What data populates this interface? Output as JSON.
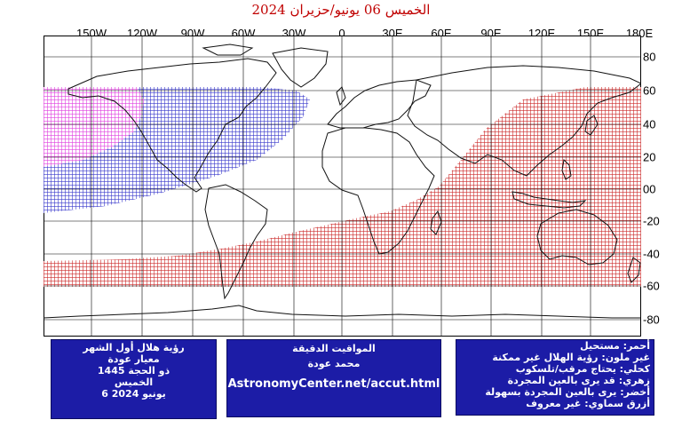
{
  "title": "الخميس 06 يونيو/حزيران 2024",
  "lon_labels": [
    "150W",
    "120W",
    "90W",
    "60W",
    "30W",
    "0",
    "30E",
    "60E",
    "90E",
    "120E",
    "150E",
    "180E"
  ],
  "lat_labels": [
    "80",
    "60",
    "40",
    "20",
    "00",
    "-20",
    "-40",
    "-60",
    "-80"
  ],
  "colors": {
    "red_zone": "#cc2a2a",
    "blue_zone": "#3a3acc",
    "magenta_zone": "#e040e0",
    "coast": "#111111",
    "box_bg": "#1c1ca6"
  },
  "legend_left": {
    "line1": "رؤية هلال أول الشهر",
    "line2": "معيار عودة",
    "line3": "ذو الحجة 1445",
    "line4": "الخميس",
    "line5": "6 يونيو 2024"
  },
  "legend_mid": {
    "line1": "المواقيت الدقيقة",
    "line2": "محمد عودة",
    "url": "AstronomyCenter.net/accut.html"
  },
  "legend_right": {
    "line1": "أحمر: مستحيل",
    "line2": "غير ملون: رؤية الهلال غير ممكنة",
    "line3": "كحلي: يحتاج مرقب/تلسكوب",
    "line4": "زهري: قد يرى بالعين المجردة",
    "line5": "أخضر: يرى بالعين المجردة بسهولة",
    "line6": "أزرق سماوي: غير معروف"
  }
}
